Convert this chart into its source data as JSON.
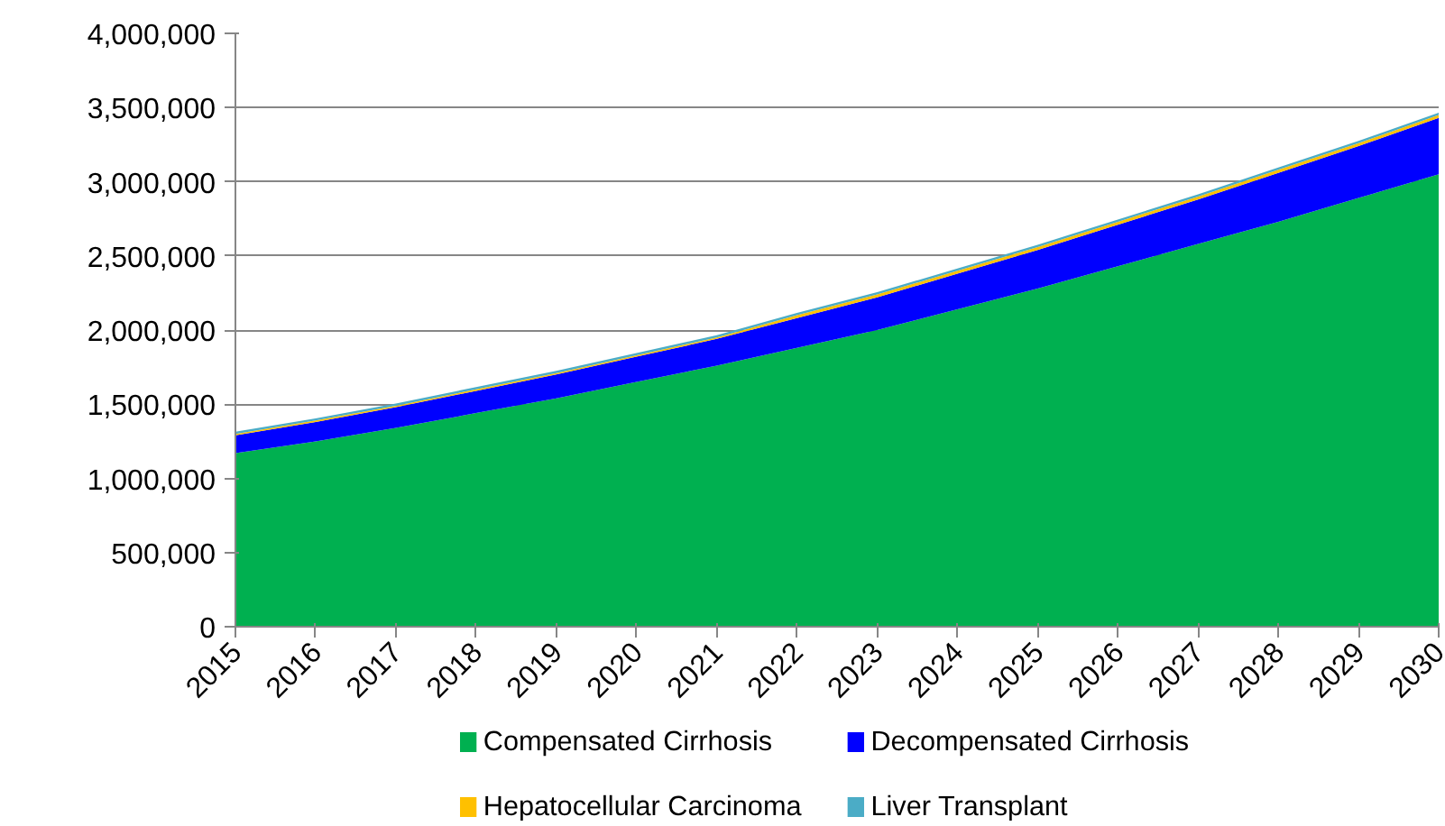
{
  "chart_data": {
    "type": "area",
    "stacked": true,
    "x": [
      2015,
      2016,
      2017,
      2018,
      2019,
      2020,
      2021,
      2022,
      2023,
      2024,
      2025,
      2026,
      2027,
      2028,
      2029,
      2030
    ],
    "series": [
      {
        "name": "Compensated Cirrhosis",
        "color": "#00b050",
        "values": [
          1170000,
          1250000,
          1340000,
          1440000,
          1540000,
          1650000,
          1760000,
          1880000,
          2000000,
          2140000,
          2280000,
          2430000,
          2580000,
          2730000,
          2890000,
          3050000
        ]
      },
      {
        "name": "Decompensated Cirrhosis",
        "color": "#0000ff",
        "values": [
          120000,
          130000,
          140000,
          150000,
          160000,
          170000,
          180000,
          200000,
          220000,
          240000,
          260000,
          280000,
          300000,
          330000,
          350000,
          380000
        ]
      },
      {
        "name": "Hepatocellular Carcinoma",
        "color": "#ffc000",
        "values": [
          10000,
          10000,
          10000,
          10000,
          10000,
          10000,
          10000,
          20000,
          20000,
          20000,
          20000,
          20000,
          20000,
          20000,
          20000,
          20000
        ]
      },
      {
        "name": "Liver Transplant",
        "color": "#4bacc6",
        "values": [
          15000,
          15000,
          15000,
          15000,
          15000,
          15000,
          15000,
          15000,
          15000,
          15000,
          15000,
          15000,
          15000,
          15000,
          15000,
          15000
        ]
      }
    ],
    "xlim": [
      2015,
      2030
    ],
    "xticks": [
      2015,
      2016,
      2017,
      2018,
      2019,
      2020,
      2021,
      2022,
      2023,
      2024,
      2025,
      2026,
      2027,
      2028,
      2029,
      2030
    ],
    "ylim": [
      0,
      4000000
    ],
    "yticks": [
      0,
      {
        "value": 500000,
        "label": "500,000"
      },
      {
        "value": 1000000,
        "label": "1,000,000"
      },
      {
        "value": 1500000,
        "label": "1,500,000"
      },
      {
        "value": 2000000,
        "label": "2,000,000"
      },
      {
        "value": 2500000,
        "label": "2,500,000"
      },
      {
        "value": 3000000,
        "label": "3,000,000"
      },
      {
        "value": 3500000,
        "label": "3,500,000"
      },
      {
        "value": 4000000,
        "label": "4,000,000"
      }
    ],
    "grid": "y",
    "legend": "bottom"
  }
}
